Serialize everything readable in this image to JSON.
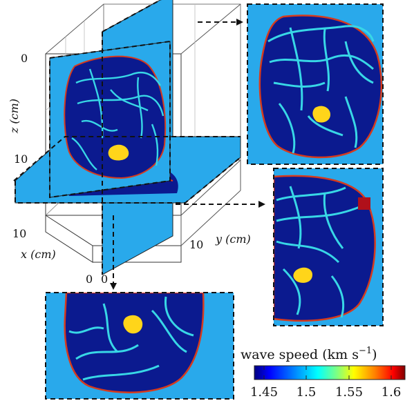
{
  "axes": {
    "z_label": "z (cm)",
    "x_label": "x (cm)",
    "y_label": "y (cm)",
    "z_ticks": [
      "0",
      "10"
    ],
    "x_ticks": [
      "10",
      "0"
    ],
    "y_ticks": [
      "0",
      "10"
    ]
  },
  "colorbar": {
    "title": "wave speed (km s",
    "title_sup": "−1",
    "title_close": ")",
    "ticks": [
      "1.45",
      "1.5",
      "1.55",
      "1.6"
    ],
    "range": [
      1.45,
      1.6
    ],
    "stops": [
      "#000080",
      "#0000ff",
      "#00a0ff",
      "#00ffff",
      "#80ff80",
      "#ffff00",
      "#ff8000",
      "#ff0000",
      "#800000"
    ]
  },
  "colors": {
    "background_speed": "#29a9eb",
    "tissue": "#0b1a8f",
    "vessels": "#38d7e6",
    "tumor": "#ffd51a",
    "skin": "#d63a1c",
    "frame": "#1a1a1a"
  }
}
